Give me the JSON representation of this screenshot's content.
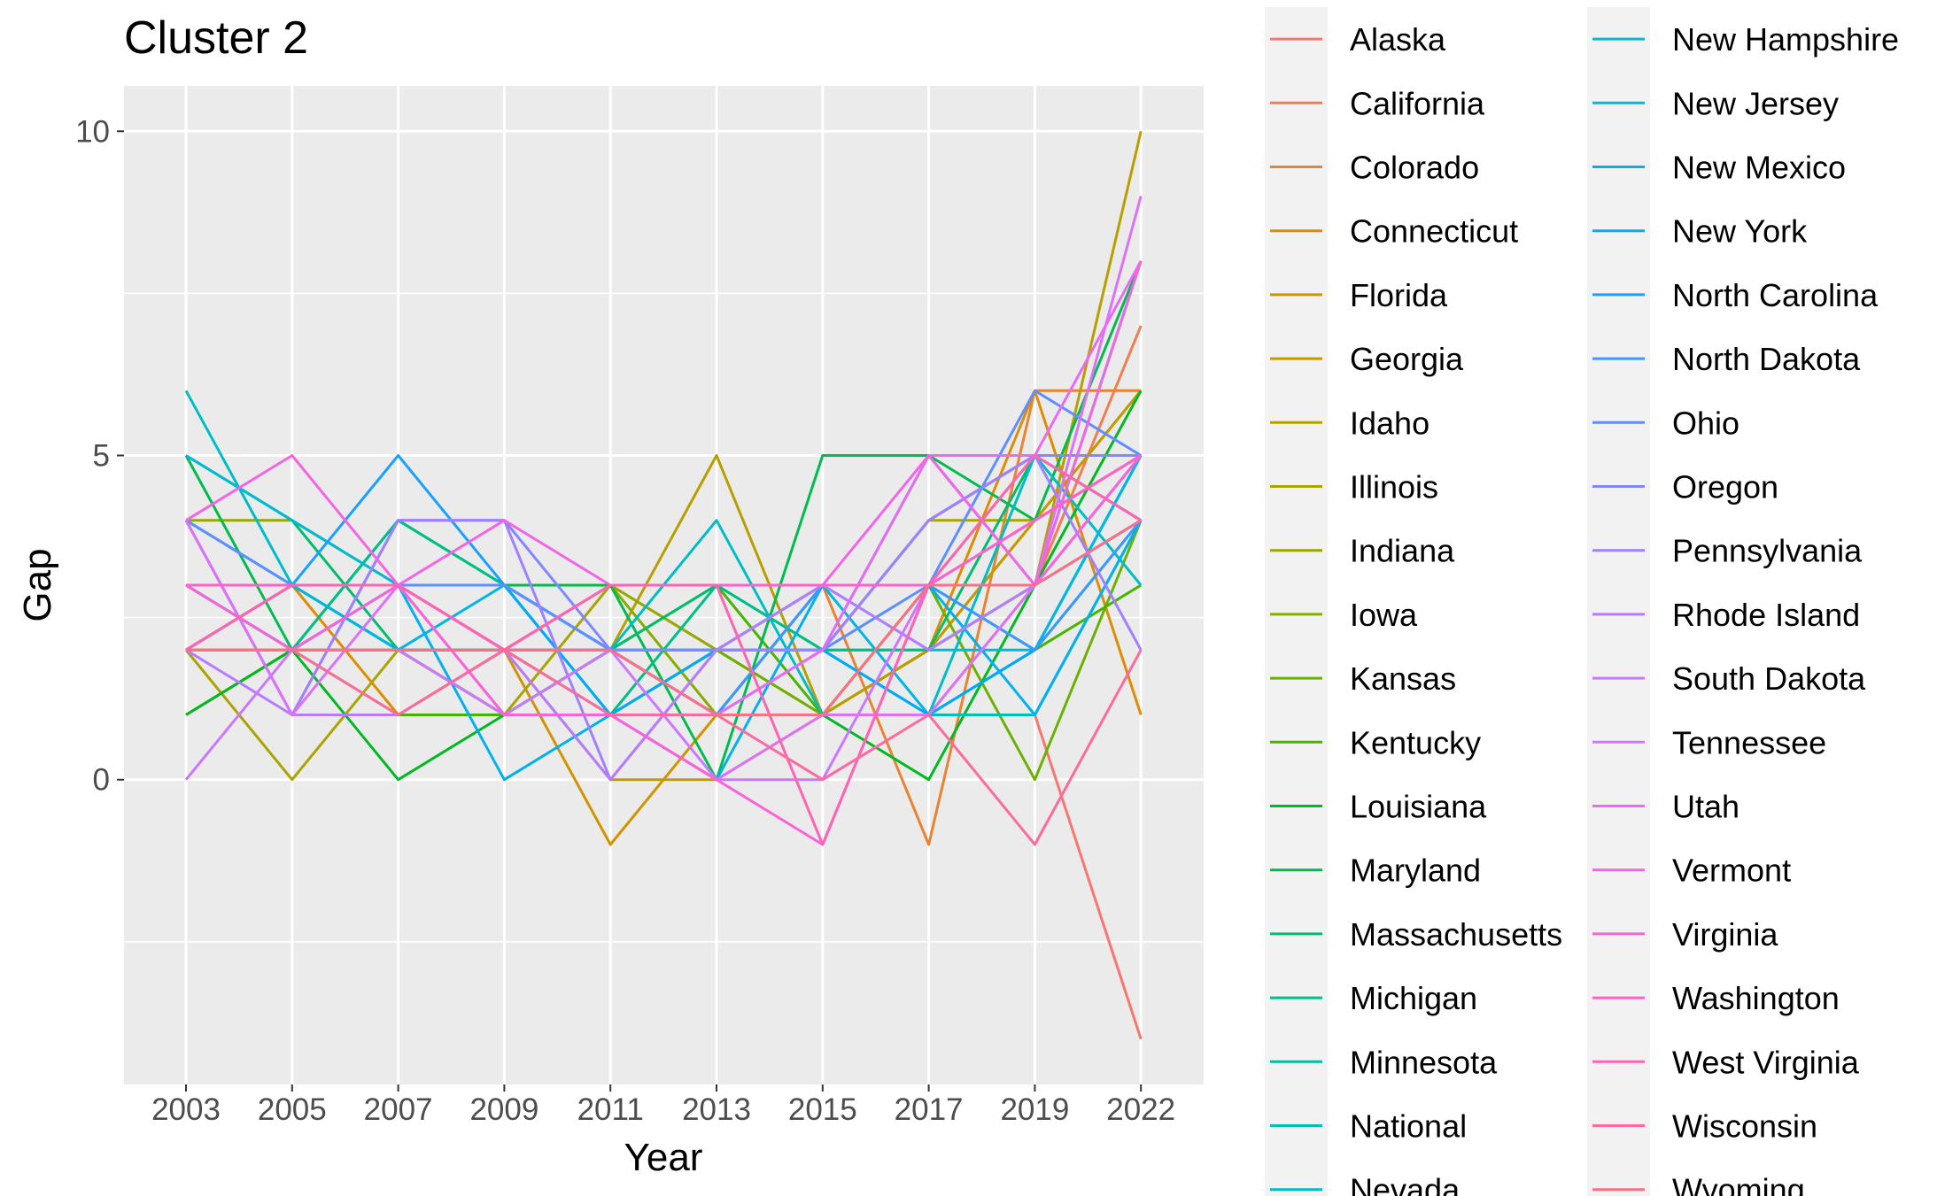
{
  "chart_data": {
    "type": "line",
    "title": "Cluster 2",
    "xlabel": "Year",
    "ylabel": "Gap",
    "x": [
      2003,
      2005,
      2007,
      2009,
      2011,
      2013,
      2015,
      2017,
      2019,
      2022
    ],
    "xticks": [
      "2003",
      "2005",
      "2007",
      "2009",
      "2011",
      "2013",
      "2015",
      "2017",
      "2019",
      "2022"
    ],
    "yticks": [
      0,
      5,
      10
    ],
    "ylim": [
      -4.7,
      10.7
    ],
    "grid": true,
    "legend_position": "right",
    "series": [
      {
        "name": "Alaska",
        "color": "#F8766D",
        "values": [
          2,
          2,
          2,
          2,
          2,
          1,
          1,
          1,
          1,
          -4
        ]
      },
      {
        "name": "California",
        "color": "#F27D52",
        "values": [
          3,
          3,
          3,
          2,
          2,
          1,
          1,
          1,
          3,
          7
        ]
      },
      {
        "name": "Colorado",
        "color": "#EA8331",
        "values": [
          2,
          3,
          2,
          1,
          1,
          1,
          3,
          -1,
          6,
          6
        ]
      },
      {
        "name": "Connecticut",
        "color": "#DE8C00",
        "values": [
          2,
          3,
          1,
          2,
          1,
          2,
          1,
          2,
          6,
          1
        ]
      },
      {
        "name": "Florida",
        "color": "#D19300",
        "values": [
          2,
          2,
          2,
          2,
          -1,
          1,
          1,
          2,
          4,
          6
        ]
      },
      {
        "name": "Georgia",
        "color": "#C49A00",
        "values": [
          3,
          3,
          2,
          2,
          0,
          0,
          1,
          2,
          4,
          6
        ]
      },
      {
        "name": "Idaho",
        "color": "#B79F00",
        "values": [
          2,
          2,
          2,
          1,
          2,
          5,
          1,
          2,
          3,
          10
        ]
      },
      {
        "name": "Illinois",
        "color": "#A9A400",
        "values": [
          2,
          0,
          2,
          1,
          3,
          2,
          2,
          4,
          4,
          5
        ]
      },
      {
        "name": "Indiana",
        "color": "#99A800",
        "values": [
          4,
          4,
          3,
          2,
          3,
          2,
          2,
          4,
          5,
          5
        ]
      },
      {
        "name": "Iowa",
        "color": "#86AC00",
        "values": [
          1,
          2,
          2,
          2,
          3,
          1,
          1,
          3,
          5,
          4
        ]
      },
      {
        "name": "Kansas",
        "color": "#6BB100",
        "values": [
          1,
          2,
          2,
          1,
          1,
          2,
          1,
          3,
          0,
          4
        ]
      },
      {
        "name": "Kentucky",
        "color": "#45B500",
        "values": [
          2,
          2,
          1,
          1,
          2,
          3,
          1,
          1,
          2,
          3
        ]
      },
      {
        "name": "Louisiana",
        "color": "#00B81F",
        "values": [
          1,
          2,
          0,
          1,
          2,
          1,
          1,
          0,
          3,
          6
        ]
      },
      {
        "name": "Maryland",
        "color": "#00BB4E",
        "values": [
          5,
          2,
          4,
          3,
          3,
          0,
          5,
          5,
          4,
          8
        ]
      },
      {
        "name": "Massachusetts",
        "color": "#00BD6D",
        "values": [
          5,
          4,
          2,
          2,
          2,
          3,
          2,
          2,
          5,
          4
        ]
      },
      {
        "name": "Michigan",
        "color": "#00BE87",
        "values": [
          3,
          2,
          4,
          3,
          1,
          3,
          2,
          2,
          3,
          8
        ]
      },
      {
        "name": "Minnesota",
        "color": "#00BF9E",
        "values": [
          3,
          3,
          2,
          2,
          1,
          2,
          3,
          3,
          2,
          5
        ]
      },
      {
        "name": "National",
        "color": "#00BFB3",
        "values": [
          3,
          2,
          3,
          2,
          2,
          2,
          2,
          1,
          1,
          4
        ]
      },
      {
        "name": "Nevada",
        "color": "#00BDC5",
        "values": [
          6,
          3,
          2,
          2,
          2,
          4,
          1,
          1,
          5,
          3
        ]
      },
      {
        "name": "New Hampshire",
        "color": "#00BAD5",
        "values": [
          5,
          4,
          3,
          3,
          2,
          2,
          3,
          2,
          2,
          5
        ]
      },
      {
        "name": "New Jersey",
        "color": "#00B6E3",
        "values": [
          4,
          3,
          2,
          3,
          2,
          1,
          3,
          1,
          2,
          5
        ]
      },
      {
        "name": "New Mexico",
        "color": "#00B0EF",
        "values": [
          3,
          2,
          3,
          0,
          1,
          0,
          3,
          3,
          1,
          4
        ]
      },
      {
        "name": "New York",
        "color": "#00A9F9",
        "values": [
          3,
          3,
          3,
          3,
          1,
          2,
          2,
          1,
          2,
          4
        ]
      },
      {
        "name": "North Carolina",
        "color": "#1AA0FF",
        "values": [
          2,
          3,
          5,
          3,
          2,
          2,
          2,
          5,
          3,
          4
        ]
      },
      {
        "name": "North Dakota",
        "color": "#3C97FF",
        "values": [
          3,
          3,
          3,
          3,
          2,
          1,
          3,
          3,
          2,
          4
        ]
      },
      {
        "name": "Ohio",
        "color": "#5F8EFF",
        "values": [
          4,
          3,
          3,
          3,
          2,
          1,
          2,
          3,
          6,
          5
        ]
      },
      {
        "name": "Oregon",
        "color": "#8187FF",
        "values": [
          4,
          1,
          4,
          4,
          2,
          2,
          2,
          4,
          5,
          5
        ]
      },
      {
        "name": "Pennsylvania",
        "color": "#9F80FF",
        "values": [
          4,
          1,
          4,
          4,
          0,
          2,
          2,
          4,
          5,
          2
        ]
      },
      {
        "name": "Rhode Island",
        "color": "#B77BFF",
        "values": [
          2,
          1,
          1,
          2,
          0,
          2,
          3,
          2,
          3,
          5
        ]
      },
      {
        "name": "South Dakota",
        "color": "#CB77FF",
        "values": [
          0,
          2,
          2,
          1,
          2,
          0,
          0,
          3,
          4,
          5
        ]
      },
      {
        "name": "Tennessee",
        "color": "#DC71FA",
        "values": [
          4,
          1,
          3,
          1,
          1,
          0,
          1,
          1,
          3,
          9
        ]
      },
      {
        "name": "Utah",
        "color": "#E86BF4",
        "values": [
          3,
          3,
          3,
          2,
          2,
          1,
          2,
          5,
          5,
          8
        ]
      },
      {
        "name": "Vermont",
        "color": "#F365E6",
        "values": [
          4,
          5,
          3,
          4,
          3,
          3,
          3,
          5,
          3,
          8
        ]
      },
      {
        "name": "Virginia",
        "color": "#FA62D8",
        "values": [
          3,
          2,
          3,
          1,
          1,
          0,
          -1,
          3,
          3,
          5
        ]
      },
      {
        "name": "Washington",
        "color": "#FE61C7",
        "values": [
          3,
          3,
          3,
          2,
          3,
          3,
          3,
          3,
          4,
          5
        ]
      },
      {
        "name": "West Virginia",
        "color": "#FF63B4",
        "values": [
          2,
          3,
          3,
          2,
          3,
          3,
          -1,
          3,
          5,
          4
        ]
      },
      {
        "name": "Wisconsin",
        "color": "#FD6A9F",
        "values": [
          2,
          2,
          1,
          2,
          1,
          1,
          0,
          1,
          -1,
          2
        ]
      },
      {
        "name": "Wyoming",
        "color": "#F97087",
        "values": [
          2,
          2,
          2,
          2,
          2,
          1,
          1,
          3,
          3,
          4
        ]
      }
    ]
  }
}
